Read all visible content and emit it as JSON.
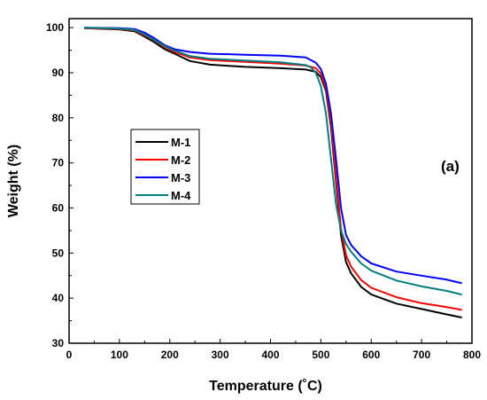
{
  "chart_data": {
    "type": "line",
    "xlabel": "Temperature (˚C)",
    "ylabel": "Weight (%)",
    "xlim": [
      0,
      800
    ],
    "ylim": [
      30,
      102
    ],
    "x_ticks": [
      0,
      100,
      200,
      300,
      400,
      500,
      600,
      700,
      800
    ],
    "y_ticks": [
      30,
      40,
      50,
      60,
      70,
      80,
      90,
      100
    ],
    "grid": false,
    "legend_position": "center-left",
    "annotation": "(a)",
    "series": [
      {
        "name": "M-1",
        "color": "#000000",
        "x": [
          30,
          100,
          130,
          150,
          170,
          190,
          210,
          240,
          280,
          350,
          420,
          470,
          490,
          500,
          510,
          520,
          530,
          540,
          550,
          560,
          580,
          600,
          650,
          700,
          750,
          780
        ],
        "y": [
          99.9,
          99.6,
          99.2,
          98.0,
          96.7,
          95.2,
          94.2,
          92.6,
          91.8,
          91.3,
          91.0,
          90.7,
          90.2,
          89.0,
          86.0,
          78.0,
          66.0,
          54.0,
          48.0,
          45.5,
          42.5,
          40.8,
          38.8,
          37.6,
          36.4,
          35.7
        ]
      },
      {
        "name": "M-2",
        "color": "#ff0000",
        "x": [
          30,
          100,
          130,
          150,
          170,
          190,
          210,
          240,
          280,
          350,
          420,
          470,
          490,
          500,
          510,
          520,
          530,
          540,
          550,
          560,
          580,
          600,
          650,
          700,
          750,
          780
        ],
        "y": [
          99.9,
          99.7,
          99.4,
          98.3,
          97.1,
          95.7,
          94.6,
          93.4,
          92.8,
          92.4,
          92.0,
          91.6,
          91.0,
          89.8,
          86.5,
          79.0,
          67.0,
          55.5,
          49.5,
          47.0,
          44.0,
          42.3,
          40.2,
          38.9,
          38.0,
          37.4
        ]
      },
      {
        "name": "M-3",
        "color": "#0000ff",
        "x": [
          30,
          100,
          130,
          150,
          170,
          190,
          210,
          240,
          280,
          350,
          420,
          470,
          490,
          500,
          510,
          520,
          530,
          540,
          550,
          560,
          580,
          600,
          650,
          700,
          750,
          780
        ],
        "y": [
          100.0,
          99.9,
          99.7,
          98.9,
          97.6,
          96.1,
          95.2,
          94.6,
          94.2,
          94.0,
          93.8,
          93.4,
          92.2,
          90.8,
          87.6,
          81.0,
          71.0,
          60.0,
          54.0,
          51.8,
          49.3,
          47.7,
          45.9,
          45.0,
          44.1,
          43.3
        ]
      },
      {
        "name": "M-4",
        "color": "#008080",
        "x": [
          30,
          100,
          130,
          150,
          170,
          190,
          210,
          240,
          280,
          350,
          420,
          470,
          480,
          490,
          500,
          510,
          520,
          530,
          540,
          550,
          560,
          580,
          600,
          650,
          700,
          750,
          780
        ],
        "y": [
          100.0,
          99.8,
          99.5,
          98.5,
          97.2,
          95.9,
          94.9,
          93.7,
          93.1,
          92.7,
          92.3,
          91.7,
          91.2,
          90.0,
          87.0,
          81.0,
          71.0,
          61.0,
          55.0,
          52.0,
          50.3,
          47.7,
          46.1,
          43.9,
          42.6,
          41.6,
          40.8
        ]
      }
    ]
  }
}
